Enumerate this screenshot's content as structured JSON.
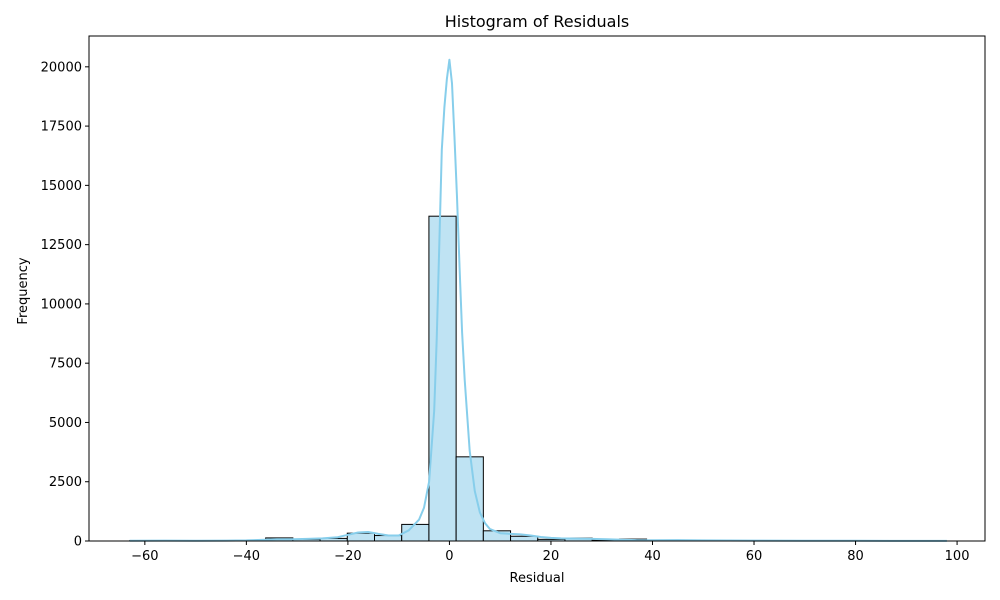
{
  "chart_data": {
    "type": "bar",
    "title": "Histogram of Residuals",
    "xlabel": "Residual",
    "ylabel": "Frequency",
    "xlim": [
      -71,
      105.5
    ],
    "ylim": [
      0,
      21300
    ],
    "xticks": [
      -60,
      -40,
      -20,
      0,
      20,
      40,
      60,
      80,
      100
    ],
    "yticks": [
      0,
      2500,
      5000,
      7500,
      10000,
      12500,
      15000,
      17500,
      20000
    ],
    "grid": false,
    "bin_edges": [
      -63,
      -57.64,
      -52.28,
      -46.92,
      -41.56,
      -36.2,
      -30.84,
      -25.48,
      -20.12,
      -14.76,
      -9.4,
      -4.04,
      1.32,
      6.68,
      12.04,
      17.4,
      22.76,
      28.12,
      33.48,
      38.84,
      44.2,
      49.56,
      54.92,
      60.28,
      65.64,
      71.0,
      76.36,
      81.72,
      87.08,
      92.44,
      97.8
    ],
    "counts": [
      12,
      8,
      6,
      10,
      20,
      130,
      70,
      110,
      330,
      230,
      700,
      13700,
      3550,
      430,
      200,
      70,
      120,
      40,
      80,
      20,
      40,
      10,
      5,
      3,
      2,
      2,
      1,
      1,
      1,
      1
    ],
    "kde": {
      "x": [
        -63,
        -56,
        -50,
        -44,
        -40,
        -37,
        -34,
        -31,
        -28,
        -25,
        -22,
        -20,
        -18,
        -16,
        -14,
        -12,
        -10,
        -8,
        -6,
        -5,
        -4,
        -3,
        -2.5,
        -2,
        -1.5,
        -1,
        -0.5,
        0,
        0.5,
        1,
        1.5,
        2,
        2.5,
        3,
        4,
        5,
        6,
        7,
        8,
        10,
        12,
        14,
        16,
        18,
        20,
        22,
        25,
        28,
        31,
        34,
        37,
        40,
        45,
        50,
        60,
        70,
        80,
        90,
        98
      ],
      "y": [
        10,
        15,
        10,
        15,
        25,
        45,
        70,
        75,
        90,
        110,
        160,
        260,
        360,
        380,
        300,
        230,
        230,
        450,
        900,
        1400,
        2500,
        5500,
        8500,
        12500,
        16500,
        18300,
        19500,
        20300,
        19300,
        17000,
        14500,
        11500,
        8800,
        6800,
        3800,
        2100,
        1200,
        750,
        500,
        330,
        300,
        280,
        230,
        170,
        130,
        110,
        100,
        90,
        70,
        50,
        35,
        30,
        40,
        25,
        15,
        10,
        8,
        5,
        5
      ]
    },
    "colors": {
      "bar_fill": "#bfe3f3",
      "bar_edge": "#000000",
      "kde_line": "#87ceeb"
    }
  }
}
